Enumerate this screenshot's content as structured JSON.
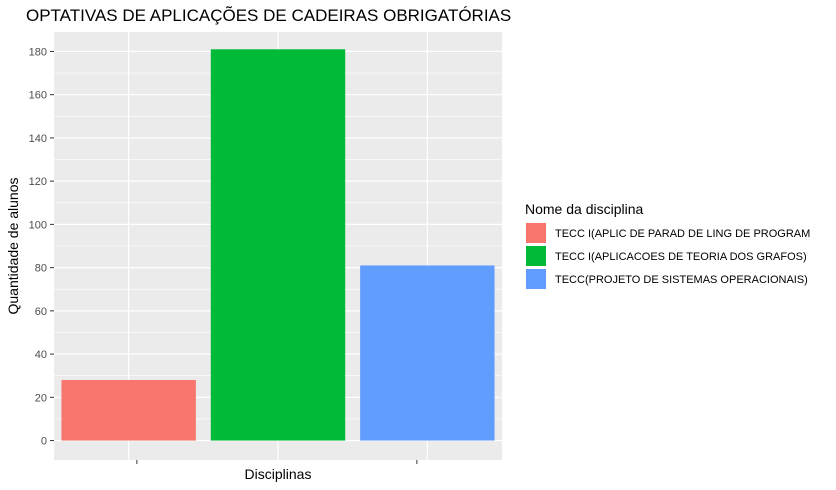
{
  "chart_data": {
    "type": "bar",
    "title": "OPTATIVAS DE APLICAÇÕES DE CADEIRAS OBRIGATÓRIAS",
    "xlabel": "Disciplinas",
    "ylabel": "Quantidade de alunos",
    "ylim": [
      -9,
      189
    ],
    "yticks": [
      0,
      20,
      40,
      60,
      80,
      100,
      120,
      140,
      160,
      180
    ],
    "grid": true,
    "legend": {
      "title": "Nome da disciplina",
      "placement": "right"
    },
    "series": [
      {
        "name": "TECC I(APLIC DE PARAD DE LING DE PROGRAM",
        "value": 28,
        "color": "#F8766D"
      },
      {
        "name": "TECC I(APLICACOES DE TEORIA DOS GRAFOS)",
        "value": 181,
        "color": "#00BA38"
      },
      {
        "name": "TECC(PROJETO DE SISTEMAS OPERACIONAIS)",
        "value": 81,
        "color": "#619CFF"
      }
    ],
    "panel_background": "#EBEBEB",
    "grid_color": "#FFFFFF"
  }
}
